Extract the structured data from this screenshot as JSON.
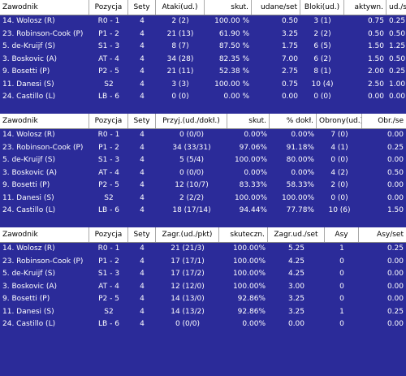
{
  "attack": {
    "headers": [
      "Zawodnik",
      "Pozycja",
      "Sety",
      "Ataki(ud.)",
      "skut.",
      "udane/set",
      "Bloki(ud.)",
      "aktywn.",
      "ud./se"
    ],
    "rows": [
      [
        "14. Wolosz (R)",
        "R0 - 1",
        "4",
        "2 (2)",
        "100.00 %",
        "0.50",
        "3 (1)",
        "0.75",
        "0.25"
      ],
      [
        "23. Robinson-Cook (P)",
        "P1 - 2",
        "4",
        "21 (13)",
        "61.90 %",
        "3.25",
        "2 (2)",
        "0.50",
        "0.50"
      ],
      [
        "5. de-Kruijf (S)",
        "S1 - 3",
        "4",
        "8 (7)",
        "87.50 %",
        "1.75",
        "6 (5)",
        "1.50",
        "1.25"
      ],
      [
        "3. Boskovic (A)",
        "AT - 4",
        "4",
        "34 (28)",
        "82.35 %",
        "7.00",
        "6 (2)",
        "1.50",
        "0.50"
      ],
      [
        "9. Bosetti (P)",
        "P2 - 5",
        "4",
        "21 (11)",
        "52.38 %",
        "2.75",
        "8 (1)",
        "2.00",
        "0.25"
      ],
      [
        "11. Danesi (S)",
        "S2",
        "4",
        "3 (3)",
        "100.00 %",
        "0.75",
        "10 (4)",
        "2.50",
        "1.00"
      ],
      [
        "24. Castillo (L)",
        "LB - 6",
        "4",
        "0 (0)",
        "0.00 %",
        "0.00",
        "0 (0)",
        "0.00",
        "0.00"
      ]
    ]
  },
  "reception": {
    "headers": [
      "Zawodnik",
      "Pozycja",
      "Sety",
      "Przyj.(ud./dokł.)",
      "skut.",
      "% dokł.",
      "Obrony(ud.)",
      "Obr./se"
    ],
    "rows": [
      [
        "14. Wolosz (R)",
        "R0 - 1",
        "4",
        "0 (0/0)",
        "0.00%",
        "0.00%",
        "7 (0)",
        "0.00"
      ],
      [
        "23. Robinson-Cook (P)",
        "P1 - 2",
        "4",
        "34 (33/31)",
        "97.06%",
        "91.18%",
        "4 (1)",
        "0.25"
      ],
      [
        "5. de-Kruijf (S)",
        "S1 - 3",
        "4",
        "5 (5/4)",
        "100.00%",
        "80.00%",
        "0 (0)",
        "0.00"
      ],
      [
        "3. Boskovic (A)",
        "AT - 4",
        "4",
        "0 (0/0)",
        "0.00%",
        "0.00%",
        "4 (2)",
        "0.50"
      ],
      [
        "9. Bosetti (P)",
        "P2 - 5",
        "4",
        "12 (10/7)",
        "83.33%",
        "58.33%",
        "2 (0)",
        "0.00"
      ],
      [
        "11. Danesi (S)",
        "S2",
        "4",
        "2 (2/2)",
        "100.00%",
        "100.00%",
        "0 (0)",
        "0.00"
      ],
      [
        "24. Castillo (L)",
        "LB - 6",
        "4",
        "18 (17/14)",
        "94.44%",
        "77.78%",
        "10 (6)",
        "1.50"
      ]
    ]
  },
  "serve": {
    "headers": [
      "Zawodnik",
      "Pozycja",
      "Sety",
      "Zagr.(ud./pkt)",
      "skuteczn.",
      "Zagr.ud./set",
      "Asy",
      "Asy/set"
    ],
    "rows": [
      [
        "14. Wolosz (R)",
        "R0 - 1",
        "4",
        "21 (21/3)",
        "100.00%",
        "5.25",
        "1",
        "0.25"
      ],
      [
        "23. Robinson-Cook (P)",
        "P1 - 2",
        "4",
        "17 (17/1)",
        "100.00%",
        "4.25",
        "0",
        "0.00"
      ],
      [
        "5. de-Kruijf (S)",
        "S1 - 3",
        "4",
        "17 (17/2)",
        "100.00%",
        "4.25",
        "0",
        "0.00"
      ],
      [
        "3. Boskovic (A)",
        "AT - 4",
        "4",
        "12 (12/0)",
        "100.00%",
        "3.00",
        "0",
        "0.00"
      ],
      [
        "9. Bosetti (P)",
        "P2 - 5",
        "4",
        "14 (13/0)",
        "92.86%",
        "3.25",
        "0",
        "0.00"
      ],
      [
        "11. Danesi (S)",
        "S2",
        "4",
        "14 (13/2)",
        "92.86%",
        "3.25",
        "1",
        "0.25"
      ],
      [
        "24. Castillo (L)",
        "LB - 6",
        "4",
        "0 (0/0)",
        "0.00%",
        "0.00",
        "0",
        "0.00"
      ]
    ]
  }
}
